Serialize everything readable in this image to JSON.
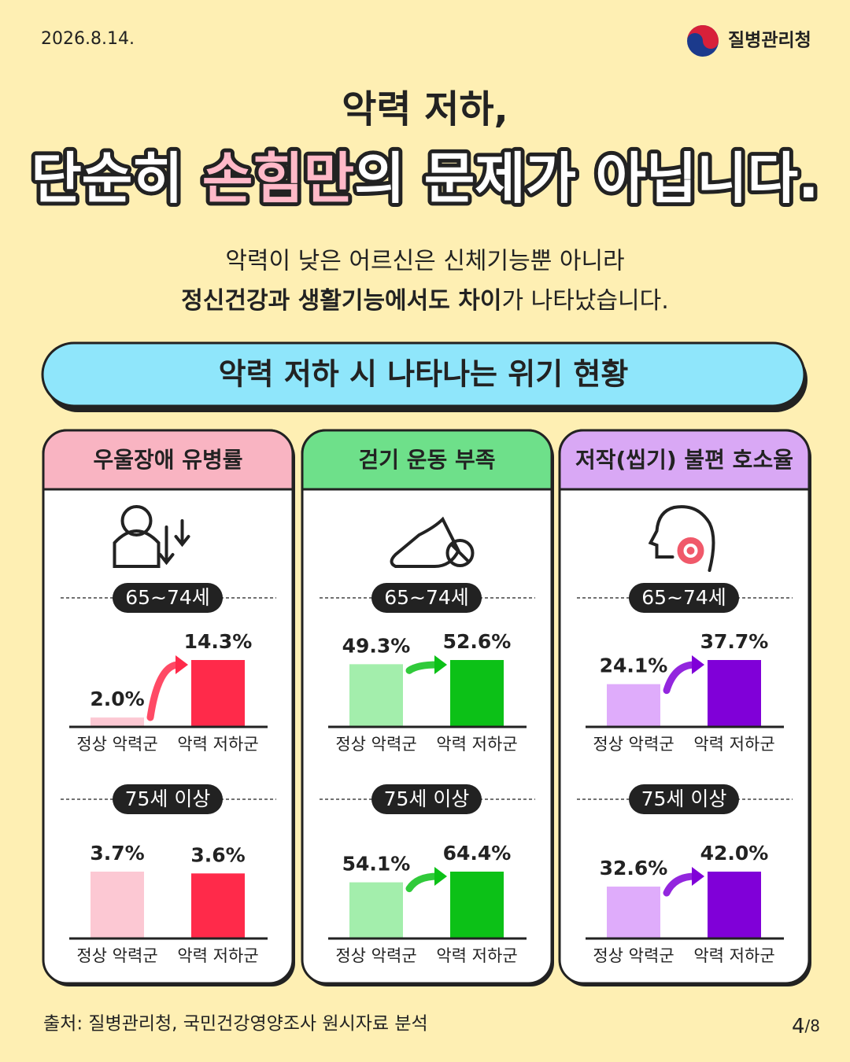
{
  "header": {
    "date": "2026.8.14.",
    "org": "질병관리청"
  },
  "title": {
    "line1": "악력 저하,",
    "line2_a": "단순히 ",
    "line2_highlight": "손힘만",
    "line2_b": "의 문제가 아닙니다."
  },
  "subtitle": {
    "line1": "악력이 낮은 어르신은 신체기능뿐 아니라",
    "line2_bold": "정신건강과 생활기능에서도 차이",
    "line2_rest": "가 나타났습니다."
  },
  "banner": "악력 저하 시 나타나는 위기 현황",
  "panels": [
    {
      "title": "우울장애 유병률"
    },
    {
      "title": "걷기 운동 부족"
    },
    {
      "title": "저작(씹기) 불편 호소율"
    }
  ],
  "chart_data": [
    {
      "type": "bar",
      "title": "65~74세",
      "categories": [
        "정상 악력군",
        "악력 저하군"
      ],
      "values": [
        2.0,
        14.3
      ],
      "value_labels": [
        "2.0%",
        "14.3%"
      ],
      "colors": [
        "#fcc8d3",
        "#ff2a4a"
      ]
    },
    {
      "type": "bar",
      "title": "75세 이상",
      "categories": [
        "정상 악력군",
        "악력 저하군"
      ],
      "values": [
        3.7,
        3.6
      ],
      "value_labels": [
        "3.7%",
        "3.6%"
      ],
      "colors": [
        "#fcc8d3",
        "#ff2a4a"
      ]
    },
    {
      "type": "bar",
      "title": "65~74세",
      "categories": [
        "정상 악력군",
        "악력 저하군"
      ],
      "values": [
        49.3,
        52.6
      ],
      "value_labels": [
        "49.3%",
        "52.6%"
      ],
      "colors": [
        "#a3eeac",
        "#0cc117"
      ]
    },
    {
      "type": "bar",
      "title": "75세 이상",
      "categories": [
        "정상 악력군",
        "악력 저하군"
      ],
      "values": [
        54.1,
        64.4
      ],
      "value_labels": [
        "54.1%",
        "64.4%"
      ],
      "colors": [
        "#a3eeac",
        "#0cc117"
      ]
    },
    {
      "type": "bar",
      "title": "65~74세",
      "categories": [
        "정상 악력군",
        "악력 저하군"
      ],
      "values": [
        24.1,
        37.7
      ],
      "value_labels": [
        "24.1%",
        "37.7%"
      ],
      "colors": [
        "#dfacfb",
        "#8000d8"
      ]
    },
    {
      "type": "bar",
      "title": "75세 이상",
      "categories": [
        "정상 악력군",
        "악력 저하군"
      ],
      "values": [
        32.6,
        42.0
      ],
      "value_labels": [
        "32.6%",
        "42.0%"
      ],
      "colors": [
        "#dfacfb",
        "#8000d8"
      ]
    }
  ],
  "footer": {
    "source": "출처: 질병관리청, 국민건강영양조사 원시자료 분석",
    "page": "4",
    "total": "/8"
  }
}
